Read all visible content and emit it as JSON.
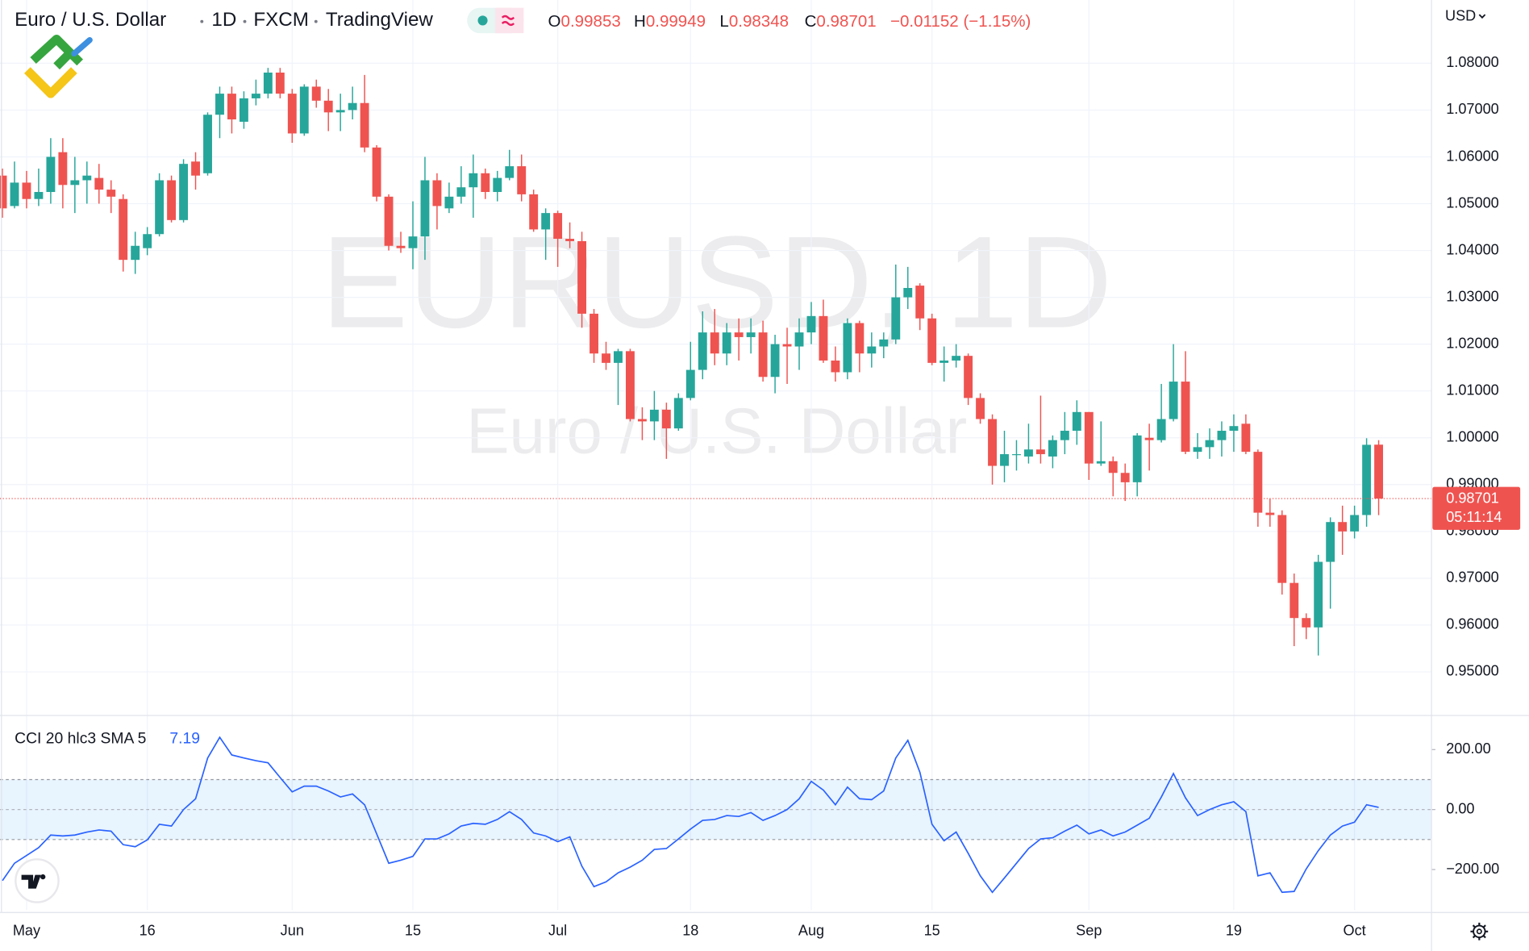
{
  "chart_data": [
    {
      "type": "candlestick",
      "title": "Euro / U.S. Dollar",
      "interval": "1D",
      "exchange": "FXCM",
      "source": "TradingView",
      "watermark": "EURUSD, 1D",
      "currency": "USD",
      "ohlc_letters": [
        "O",
        "H",
        "L",
        "C"
      ],
      "change_label": "−0.01152 (−1.15%)",
      "countdown": "05:11:14",
      "up_color": "#26a69a",
      "down_color": "#ef5350",
      "grid": true,
      "categories": [
        null,
        null,
        "May",
        null,
        null,
        null,
        null,
        null,
        null,
        null,
        null,
        null,
        "16",
        null,
        null,
        null,
        null,
        null,
        null,
        null,
        null,
        null,
        null,
        null,
        "Jun",
        null,
        null,
        null,
        null,
        null,
        null,
        null,
        null,
        null,
        "15",
        null,
        null,
        null,
        null,
        null,
        null,
        null,
        null,
        null,
        null,
        null,
        "Jul",
        null,
        null,
        null,
        null,
        null,
        null,
        null,
        null,
        null,
        null,
        "18",
        null,
        null,
        null,
        null,
        null,
        null,
        null,
        null,
        null,
        "Aug",
        null,
        null,
        null,
        null,
        null,
        null,
        null,
        null,
        null,
        "15",
        null,
        null,
        null,
        null,
        null,
        null,
        null,
        null,
        null,
        null,
        null,
        null,
        "Sep",
        null,
        null,
        null,
        null,
        null,
        null,
        null,
        null,
        null,
        null,
        null,
        "19",
        null,
        null,
        null,
        null,
        null,
        null,
        null,
        null,
        null,
        "Oct",
        null,
        null
      ],
      "open": [
        1.056,
        1.0495,
        1.0545,
        1.051,
        1.0525,
        1.061,
        1.054,
        1.055,
        1.0555,
        1.053,
        1.051,
        1.038,
        1.0405,
        1.0435,
        1.055,
        1.0465,
        1.059,
        1.0565,
        1.069,
        1.0735,
        1.0675,
        1.0725,
        1.0735,
        1.078,
        1.0735,
        1.065,
        1.075,
        1.072,
        1.0695,
        1.07,
        1.0715,
        1.062,
        1.0515,
        1.041,
        1.0405,
        1.043,
        1.055,
        1.049,
        1.0515,
        1.0535,
        1.0565,
        1.0525,
        1.0555,
        1.058,
        1.052,
        1.0445,
        1.048,
        1.0425,
        1.042,
        1.0265,
        1.018,
        1.016,
        1.0185,
        1.004,
        1.0035,
        1.006,
        1.002,
        1.0085,
        1.0145,
        1.0225,
        1.018,
        1.0225,
        1.0215,
        1.0225,
        1.013,
        1.02,
        1.0195,
        1.0225,
        1.026,
        1.0165,
        1.014,
        1.0245,
        1.018,
        1.0195,
        1.021,
        1.03,
        1.0325,
        1.0255,
        1.016,
        1.0165,
        1.0175,
        1.0085,
        1.004,
        0.994,
        0.9965,
        0.996,
        0.9975,
        0.996,
        0.9995,
        1.0015,
        1.0055,
        0.9945,
        0.995,
        0.9925,
        0.9905,
        1.0,
        0.9995,
        1.004,
        1.012,
        0.997,
        0.998,
        0.9995,
        1.0015,
        1.003,
        0.997,
        0.984,
        0.9835,
        0.969,
        0.9615,
        0.9595,
        0.9735,
        0.982,
        0.98,
        0.9835,
        0.99853
      ],
      "high": [
        1.0575,
        1.059,
        1.057,
        1.0575,
        1.064,
        1.064,
        1.06,
        1.059,
        1.0585,
        1.055,
        1.052,
        1.044,
        1.045,
        1.0565,
        1.056,
        1.0595,
        1.061,
        1.0695,
        1.075,
        1.075,
        1.074,
        1.0765,
        1.079,
        1.079,
        1.0745,
        1.0755,
        1.0765,
        1.0745,
        1.0735,
        1.075,
        1.0775,
        1.0625,
        1.052,
        1.044,
        1.0505,
        1.06,
        1.0565,
        1.0545,
        1.058,
        1.0605,
        1.0575,
        1.057,
        1.0615,
        1.0605,
        1.053,
        1.049,
        1.0485,
        1.046,
        1.044,
        1.0275,
        1.0205,
        1.019,
        1.019,
        1.0065,
        1.01,
        1.0075,
        1.0095,
        1.0205,
        1.027,
        1.0275,
        1.0245,
        1.0255,
        1.0255,
        1.025,
        1.022,
        1.0235,
        1.0255,
        1.029,
        1.0295,
        1.0195,
        1.0255,
        1.025,
        1.0225,
        1.0225,
        1.037,
        1.0365,
        1.033,
        1.0265,
        1.0195,
        1.02,
        1.018,
        1.0095,
        1.005,
        1.0015,
        0.9995,
        1.003,
        1.009,
        1.0005,
        1.0055,
        1.008,
        1.0055,
        1.0035,
        0.996,
        0.9945,
        1.001,
        1.003,
        1.0115,
        1.02,
        1.0185,
        1.001,
        1.002,
        1.0035,
        1.005,
        1.005,
        0.9975,
        0.987,
        0.9845,
        0.971,
        0.9625,
        0.975,
        0.983,
        0.9855,
        0.9855,
        0.9999,
        0.99949
      ],
      "low": [
        1.047,
        1.049,
        1.049,
        1.0495,
        1.05,
        1.049,
        1.048,
        1.05,
        1.05,
        1.048,
        1.0355,
        1.035,
        1.039,
        1.043,
        1.046,
        1.046,
        1.053,
        1.056,
        1.064,
        1.065,
        1.066,
        1.071,
        1.0725,
        1.0725,
        1.063,
        1.0645,
        1.0705,
        1.0655,
        1.0655,
        1.068,
        1.061,
        1.0505,
        1.04,
        1.0395,
        1.036,
        1.038,
        1.0445,
        1.048,
        1.05,
        1.047,
        1.051,
        1.0505,
        1.055,
        1.0505,
        1.044,
        1.038,
        1.0365,
        1.0405,
        1.0235,
        1.016,
        1.0145,
        1.007,
        1.0035,
        0.9995,
        0.9995,
        0.9955,
        1.0015,
        1.008,
        1.0125,
        1.0155,
        1.0155,
        1.0165,
        1.018,
        1.012,
        1.0095,
        1.0115,
        1.0145,
        1.02,
        1.016,
        1.012,
        1.0125,
        1.014,
        1.015,
        1.017,
        1.02,
        1.0275,
        1.023,
        1.0155,
        1.012,
        1.015,
        1.007,
        1.003,
        0.99,
        0.9905,
        0.993,
        0.9945,
        0.9945,
        0.9935,
        0.9965,
        0.9985,
        0.991,
        0.994,
        0.9875,
        0.9865,
        0.9875,
        0.993,
        0.999,
        1.0035,
        0.9965,
        0.9955,
        0.9955,
        0.996,
        0.997,
        0.9965,
        0.981,
        0.981,
        0.9665,
        0.9555,
        0.957,
        0.9535,
        0.9635,
        0.975,
        0.9785,
        0.981,
        0.98348
      ],
      "close": [
        1.049,
        1.0545,
        1.051,
        1.0525,
        1.06,
        1.054,
        1.055,
        1.056,
        1.053,
        1.0515,
        1.038,
        1.041,
        1.0435,
        1.055,
        1.0465,
        1.0585,
        1.056,
        1.069,
        1.0735,
        1.068,
        1.0725,
        1.0735,
        1.078,
        1.0735,
        1.065,
        1.075,
        1.072,
        1.0695,
        1.07,
        1.0715,
        1.062,
        1.0515,
        1.041,
        1.0405,
        1.043,
        1.055,
        1.0495,
        1.0515,
        1.0535,
        1.0565,
        1.0525,
        1.0555,
        1.058,
        1.052,
        1.0445,
        1.048,
        1.0425,
        1.042,
        1.0265,
        1.018,
        1.016,
        1.0185,
        1.004,
        1.0035,
        1.006,
        1.002,
        1.0085,
        1.0145,
        1.0225,
        1.018,
        1.0225,
        1.0215,
        1.0225,
        1.013,
        1.02,
        1.0195,
        1.0225,
        1.026,
        1.0165,
        1.014,
        1.0245,
        1.018,
        1.0195,
        1.021,
        1.03,
        1.032,
        1.0255,
        1.016,
        1.0165,
        1.0175,
        1.0085,
        1.004,
        0.994,
        0.9965,
        0.9965,
        0.9975,
        0.9965,
        0.9995,
        1.0015,
        1.0055,
        0.9945,
        0.995,
        0.9925,
        0.9905,
        1.0005,
        0.9995,
        1.004,
        1.012,
        0.997,
        0.998,
        0.9995,
        1.0015,
        1.0025,
        0.997,
        0.984,
        0.9835,
        0.969,
        0.9615,
        0.9595,
        0.9735,
        0.982,
        0.98,
        0.9835,
        0.9985,
        0.98701
      ],
      "ylim": [
        0.9408,
        1.0935
      ],
      "yticks": [
        {
          "value": 0.95,
          "label": "0.95000"
        },
        {
          "value": 0.96,
          "label": "0.96000"
        },
        {
          "value": 0.97,
          "label": "0.97000"
        },
        {
          "value": 0.98,
          "label": "0.98000"
        },
        {
          "value": 0.99,
          "label": "0.99000"
        },
        {
          "value": 1.0,
          "label": "1.00000"
        },
        {
          "value": 1.01,
          "label": "1.01000"
        },
        {
          "value": 1.02,
          "label": "1.02000"
        },
        {
          "value": 1.03,
          "label": "1.03000"
        },
        {
          "value": 1.04,
          "label": "1.04000"
        },
        {
          "value": 1.05,
          "label": "1.05000"
        },
        {
          "value": 1.06,
          "label": "1.06000"
        },
        {
          "value": 1.07,
          "label": "1.07000"
        },
        {
          "value": 1.08,
          "label": "1.08000"
        }
      ]
    },
    {
      "type": "line",
      "title": "CCI 20 hlc3 SMA 5",
      "color": "#2962ff",
      "values": [
        -237,
        -179,
        -153,
        -127,
        -85,
        -88,
        -85,
        -75,
        -68,
        -72,
        -117,
        -124,
        -101,
        -49,
        -55,
        0,
        36,
        172,
        241,
        182,
        172,
        163,
        156,
        107,
        59,
        78,
        78,
        62,
        42,
        52,
        16,
        -81,
        -179,
        -169,
        -156,
        -98,
        -98,
        -81,
        -55,
        -46,
        -49,
        -33,
        -7,
        -33,
        -78,
        -88,
        -107,
        -91,
        -189,
        -257,
        -241,
        -211,
        -192,
        -169,
        -133,
        -130,
        -98,
        -65,
        -36,
        -33,
        -20,
        -23,
        -10,
        -36,
        -20,
        0,
        36,
        94,
        65,
        16,
        75,
        36,
        33,
        62,
        172,
        231,
        124,
        -49,
        -104,
        -75,
        -146,
        -221,
        -276,
        -228,
        -179,
        -130,
        -98,
        -94,
        -72,
        -52,
        -81,
        -68,
        -88,
        -75,
        -52,
        -29,
        42,
        120,
        39,
        -20,
        0,
        16,
        26,
        -7,
        -221,
        -211,
        -276,
        -273,
        -198,
        -137,
        -85,
        -55,
        -42,
        16,
        7.19
      ],
      "band": {
        "upper": 100,
        "middle": 0,
        "lower": -100
      },
      "ylim": [
        -335,
        309
      ],
      "yticks": [
        {
          "value": 200,
          "label": "200.00"
        },
        {
          "value": 0,
          "label": "0.00"
        },
        {
          "value": -200,
          "label": "−200.00"
        }
      ]
    }
  ]
}
